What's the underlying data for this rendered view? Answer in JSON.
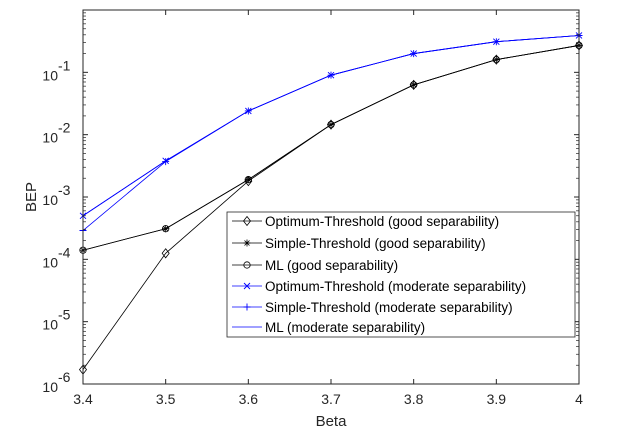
{
  "chart_data": {
    "type": "line",
    "title": "",
    "xlabel": "Beta",
    "ylabel": "BEP",
    "yscale": "log",
    "xlim": [
      3.4,
      4.0
    ],
    "ylim_exponents": [
      -6,
      0
    ],
    "grid": false,
    "legend_location": "bottom-right",
    "x": [
      3.4,
      3.5,
      3.6,
      3.7,
      3.8,
      3.9,
      4.0
    ],
    "x_tick_labels": [
      "3.4",
      "3.5",
      "3.6",
      "3.7",
      "3.8",
      "3.9",
      "4"
    ],
    "y_ticks": [
      {
        "base": "10",
        "exp": "-6"
      },
      {
        "base": "10",
        "exp": "-5"
      },
      {
        "base": "10",
        "exp": "-4"
      },
      {
        "base": "10",
        "exp": "-3"
      },
      {
        "base": "10",
        "exp": "-2"
      },
      {
        "base": "10",
        "exp": "-1"
      }
    ],
    "series": [
      {
        "name": "Optimum-Threshold (good separability)",
        "color": "#000000",
        "marker": "diamond",
        "values": [
          1.7e-06,
          0.000125,
          0.0018,
          0.0145,
          0.063,
          0.16,
          0.27
        ]
      },
      {
        "name": "Simple-Threshold (good separability)",
        "color": "#000000",
        "marker": "asterisk",
        "values": [
          0.00014,
          0.00031,
          0.0019,
          0.0145,
          0.063,
          0.16,
          0.27
        ]
      },
      {
        "name": "ML (good separability)",
        "color": "#000000",
        "marker": "circle",
        "values": [
          0.00014,
          0.00031,
          0.0019,
          0.0145,
          0.063,
          0.16,
          0.27
        ]
      },
      {
        "name": "Optimum-Threshold (moderate separability)",
        "color": "#0000ff",
        "marker": "x",
        "values": [
          0.0005,
          0.0038,
          0.024,
          0.09,
          0.2,
          0.31,
          0.39
        ]
      },
      {
        "name": "Simple-Threshold (moderate separability)",
        "color": "#0000ff",
        "marker": "plus",
        "values": [
          0.00029,
          0.0037,
          0.024,
          0.09,
          0.2,
          0.31,
          0.39
        ]
      },
      {
        "name": "ML (moderate separability)",
        "color": "#0000ff",
        "marker": "none",
        "values": [
          0.0005,
          0.0038,
          0.024,
          0.09,
          0.2,
          0.31,
          0.39
        ]
      }
    ]
  }
}
